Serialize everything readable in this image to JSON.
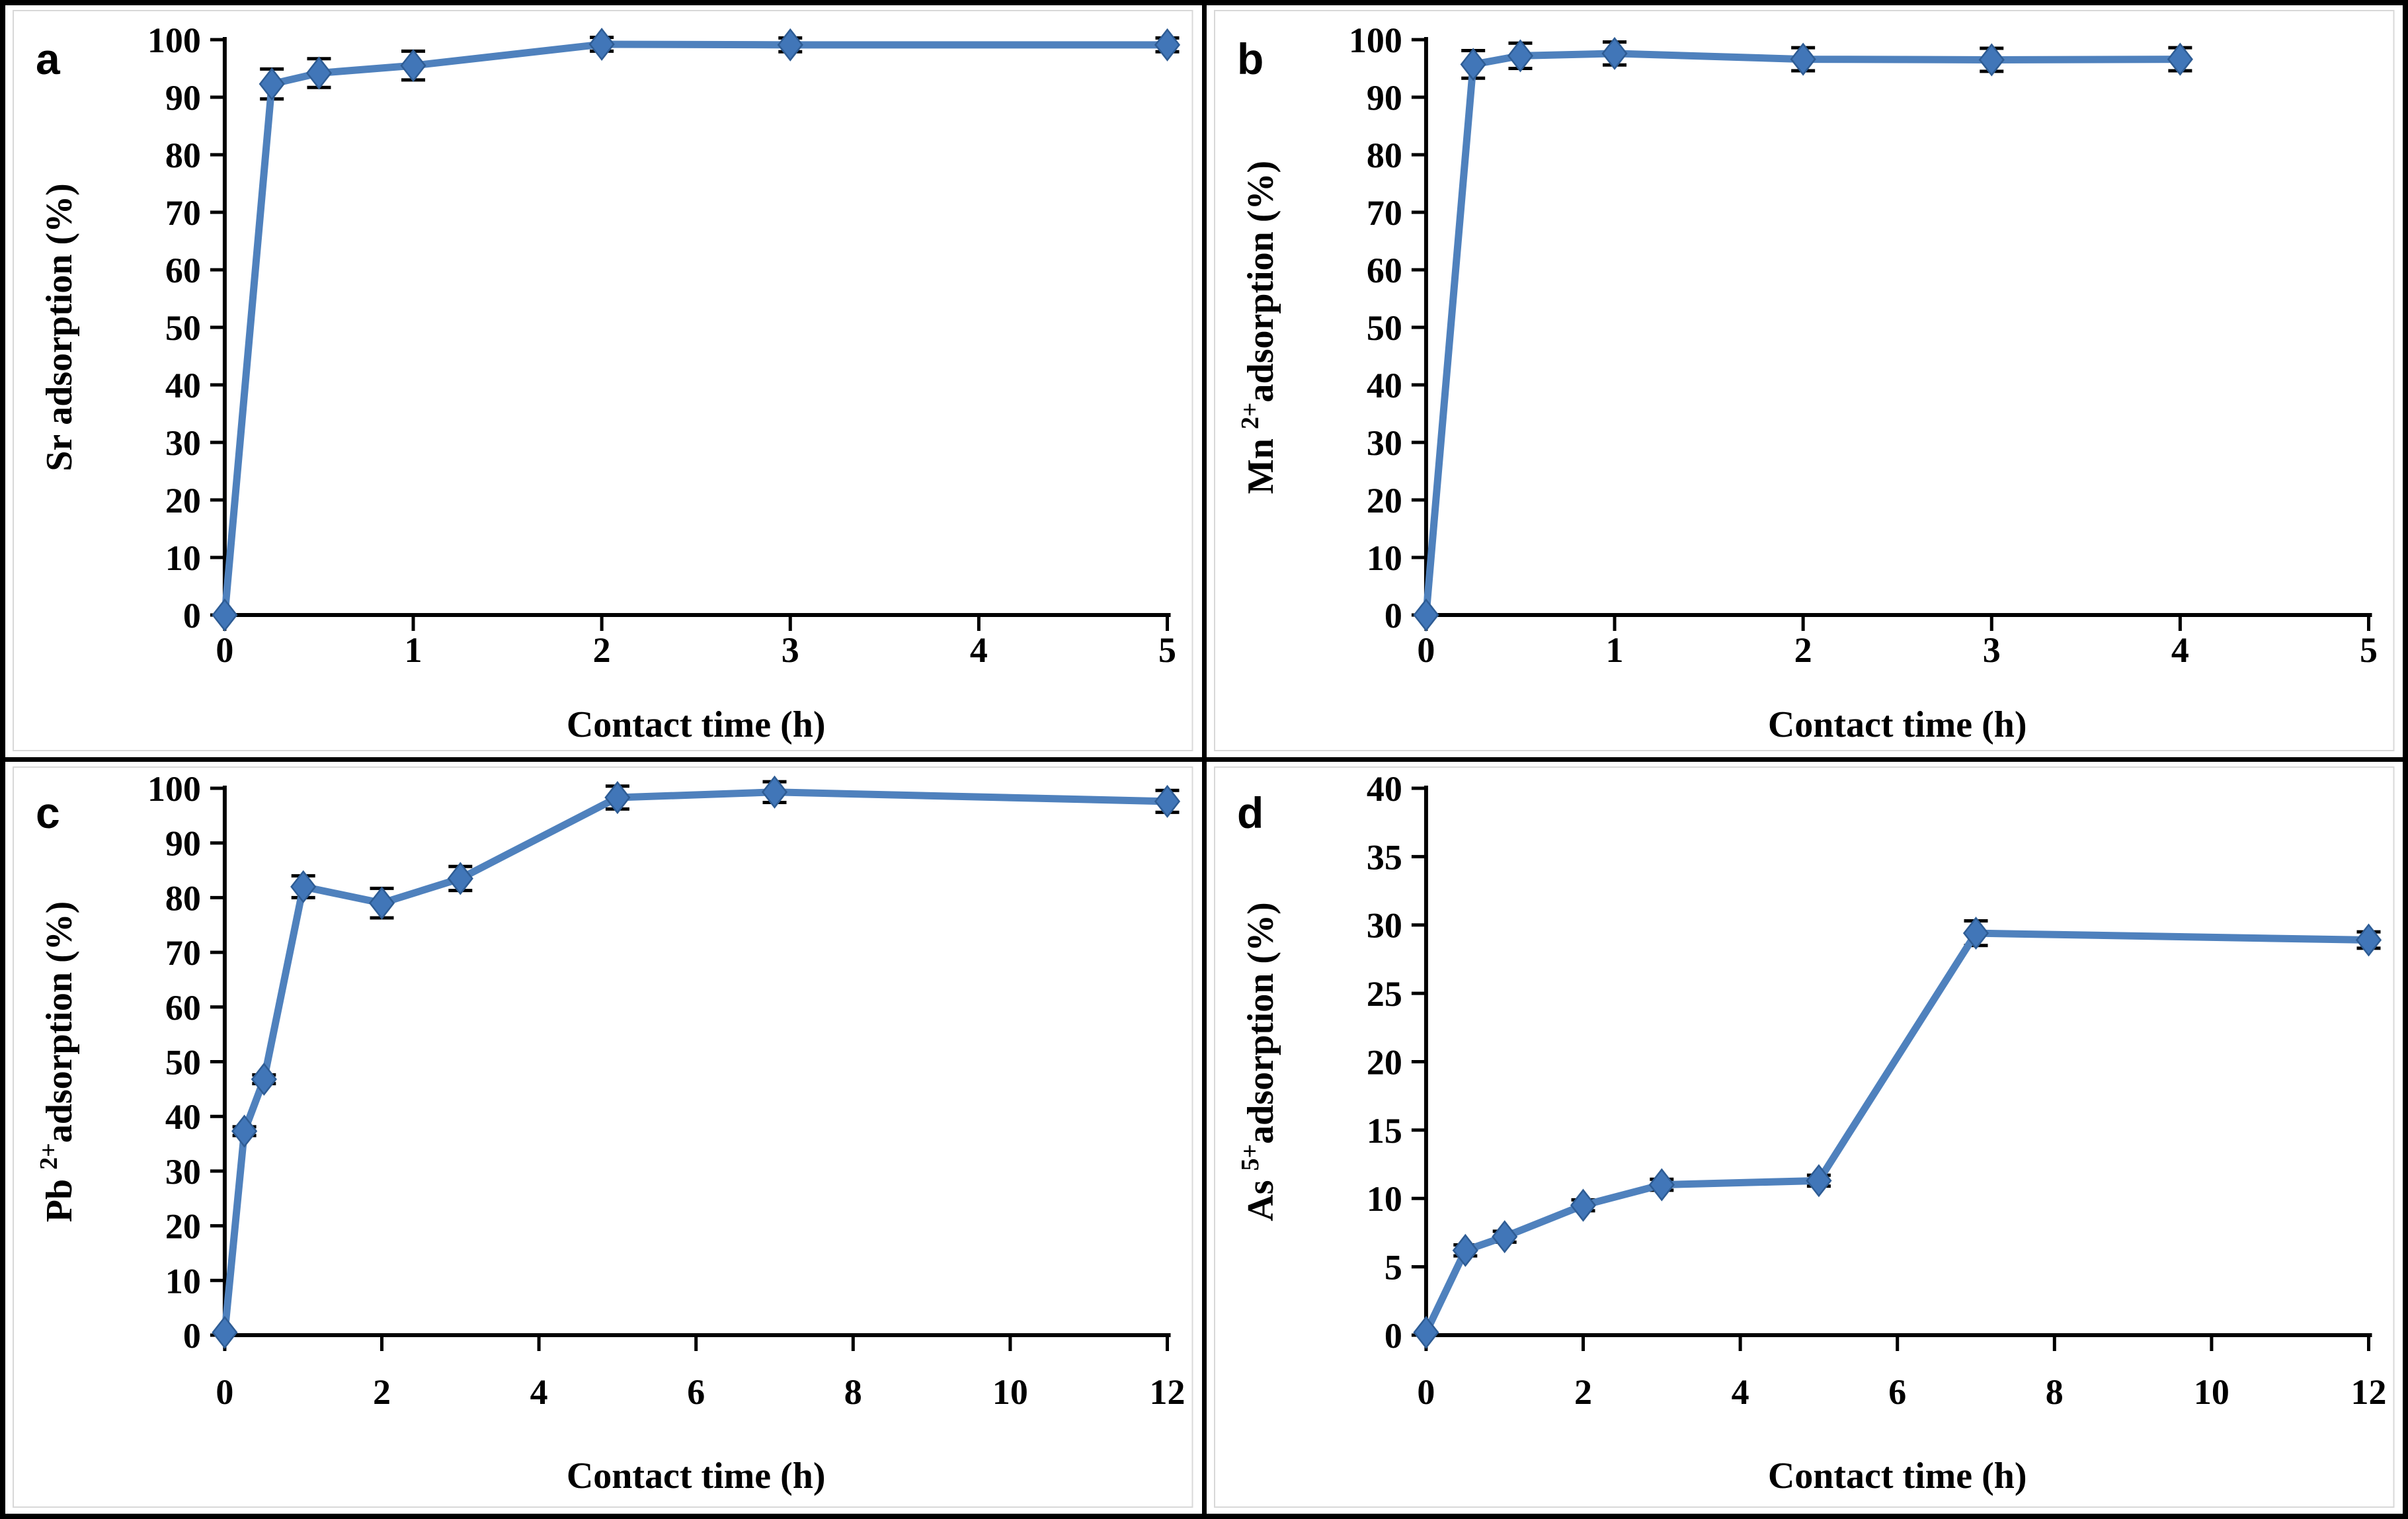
{
  "figure": {
    "background": "#ffffff",
    "border_color": "#000000",
    "line_color": "#4f81bd",
    "marker_color": "#4176b8",
    "marker_edge_color": "#2e5c94",
    "error_bar_color": "#000000",
    "inner_frame_color": "#d8d8d8"
  },
  "chart_data": [
    {
      "type": "line",
      "panel_label": "a",
      "xlabel": "Contact time (h)",
      "ylabel": {
        "base": "Sr",
        "sup": "",
        "rest": "adsorption (%)"
      },
      "xlim": [
        0,
        5
      ],
      "ylim": [
        0,
        100
      ],
      "xticks": [
        0,
        1,
        2,
        3,
        4,
        5
      ],
      "yticks": [
        0,
        10,
        20,
        30,
        40,
        50,
        60,
        70,
        80,
        90,
        100
      ],
      "grid": false,
      "legend": null,
      "marker": "diamond",
      "x": [
        0,
        0.25,
        0.5,
        1,
        2,
        3,
        5
      ],
      "y": [
        0,
        92.3,
        94.2,
        95.5,
        99.2,
        99.1,
        99.1
      ],
      "yerr": [
        0,
        2.6,
        2.5,
        2.5,
        1.2,
        1.2,
        1.2
      ]
    },
    {
      "type": "line",
      "panel_label": "b",
      "xlabel": "Contact time (h)",
      "ylabel": {
        "base": "Mn",
        "sup": "2+",
        "rest": "adsorption (%)"
      },
      "xlim": [
        0,
        5
      ],
      "ylim": [
        0,
        100
      ],
      "xticks": [
        0,
        1,
        2,
        3,
        4,
        5
      ],
      "yticks": [
        0,
        10,
        20,
        30,
        40,
        50,
        60,
        70,
        80,
        90,
        100
      ],
      "grid": false,
      "legend": null,
      "marker": "diamond",
      "x": [
        0,
        0.25,
        0.5,
        1,
        2,
        3,
        4
      ],
      "y": [
        0,
        95.7,
        97.2,
        97.6,
        96.6,
        96.5,
        96.6
      ],
      "yerr": [
        0,
        2.4,
        2.2,
        2.0,
        2.0,
        2.0,
        2.0
      ]
    },
    {
      "type": "line",
      "panel_label": "c",
      "xlabel": "Contact time (h)",
      "ylabel": {
        "base": "Pb",
        "sup": "2+",
        "rest": "adsorption (%)"
      },
      "xlim": [
        0,
        12
      ],
      "ylim": [
        0,
        100
      ],
      "xticks": [
        0,
        2,
        4,
        6,
        8,
        10,
        12
      ],
      "yticks": [
        0,
        10,
        20,
        30,
        40,
        50,
        60,
        70,
        80,
        90,
        100
      ],
      "grid": false,
      "legend": null,
      "marker": "diamond",
      "x": [
        0,
        0.25,
        0.5,
        1,
        2,
        3,
        5,
        7,
        12
      ],
      "y": [
        0.5,
        37.3,
        46.8,
        82.0,
        79.0,
        83.5,
        98.3,
        99.3,
        97.6
      ],
      "yerr": [
        0,
        0.8,
        0.8,
        2.0,
        2.7,
        2.2,
        2.1,
        1.9,
        2.0
      ]
    },
    {
      "type": "line",
      "panel_label": "d",
      "xlabel": "Contact time (h)",
      "ylabel": {
        "base": "As",
        "sup": "5+",
        "rest": "adsorption (%)"
      },
      "xlim": [
        0,
        12
      ],
      "ylim": [
        0,
        40
      ],
      "xticks": [
        0,
        2,
        4,
        6,
        8,
        10,
        12
      ],
      "yticks": [
        0,
        5,
        10,
        15,
        20,
        25,
        30,
        35,
        40
      ],
      "grid": false,
      "legend": null,
      "marker": "diamond",
      "x": [
        0,
        0.5,
        1,
        2,
        3,
        5,
        7,
        12
      ],
      "y": [
        0.2,
        6.2,
        7.2,
        9.5,
        11.0,
        11.3,
        29.4,
        28.9
      ],
      "yerr": [
        0,
        0.4,
        0.4,
        0.4,
        0.4,
        0.4,
        0.9,
        0.6
      ]
    }
  ]
}
